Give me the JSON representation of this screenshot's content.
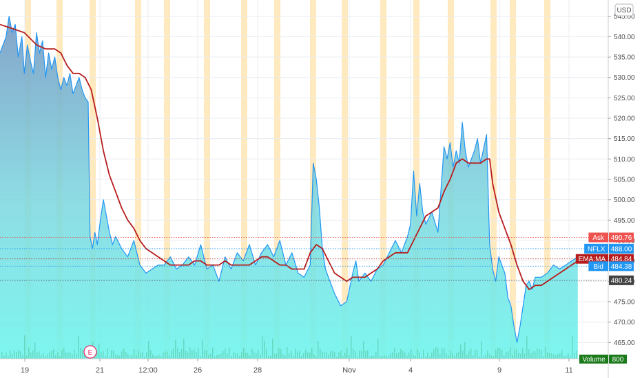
{
  "chart_data": {
    "type": "area",
    "symbol": "NFLX",
    "currency": "USD",
    "ylim": [
      461.0,
      549.0
    ],
    "x_tick_labels": [
      "19",
      "21",
      "12:00",
      "26",
      "28",
      "Nov",
      "4",
      "9",
      "11"
    ],
    "y_ticks": [
      465.0,
      470.0,
      475.0,
      480.0,
      485.0,
      490.0,
      495.0,
      500.0,
      505.0,
      510.0,
      515.0,
      520.0,
      525.0,
      530.0,
      535.0,
      540.0,
      545.0
    ],
    "y_tick_labels": [
      "465.00",
      "470.00",
      "475.00",
      "480.00",
      "485.00",
      "490.00",
      "495.00",
      "500.00",
      "505.00",
      "510.00",
      "515.00",
      "520.00",
      "525.00",
      "530.00",
      "535.00",
      "540.00",
      "545.00"
    ],
    "series": [
      {
        "name": "NFLX",
        "values": [
          [
            0.0,
            536
          ],
          [
            0.01,
            540
          ],
          [
            0.015,
            545
          ],
          [
            0.02,
            541
          ],
          [
            0.025,
            543
          ],
          [
            0.03,
            535
          ],
          [
            0.036,
            540
          ],
          [
            0.04,
            531
          ],
          [
            0.045,
            538
          ],
          [
            0.05,
            534
          ],
          [
            0.055,
            531
          ],
          [
            0.06,
            541
          ],
          [
            0.065,
            536
          ],
          [
            0.07,
            539
          ],
          [
            0.075,
            530
          ],
          [
            0.08,
            536
          ],
          [
            0.085,
            532
          ],
          [
            0.09,
            535
          ],
          [
            0.095,
            530
          ],
          [
            0.1,
            527
          ],
          [
            0.105,
            530
          ],
          [
            0.11,
            528
          ],
          [
            0.115,
            531
          ],
          [
            0.12,
            526
          ],
          [
            0.125,
            528
          ],
          [
            0.13,
            530
          ],
          [
            0.135,
            527
          ],
          [
            0.14,
            525
          ],
          [
            0.145,
            524
          ],
          [
            0.148,
            491
          ],
          [
            0.152,
            488
          ],
          [
            0.156,
            492
          ],
          [
            0.16,
            489
          ],
          [
            0.165,
            495
          ],
          [
            0.17,
            500
          ],
          [
            0.175,
            496
          ],
          [
            0.18,
            492
          ],
          [
            0.185,
            489
          ],
          [
            0.19,
            491
          ],
          [
            0.2,
            488
          ],
          [
            0.21,
            486
          ],
          [
            0.22,
            490
          ],
          [
            0.23,
            484
          ],
          [
            0.24,
            482
          ],
          [
            0.25,
            483
          ],
          [
            0.26,
            484
          ],
          [
            0.27,
            484
          ],
          [
            0.28,
            486
          ],
          [
            0.29,
            483
          ],
          [
            0.3,
            484
          ],
          [
            0.31,
            486
          ],
          [
            0.32,
            484
          ],
          [
            0.33,
            489
          ],
          [
            0.34,
            483
          ],
          [
            0.35,
            484
          ],
          [
            0.36,
            480
          ],
          [
            0.37,
            486
          ],
          [
            0.38,
            483
          ],
          [
            0.39,
            487
          ],
          [
            0.4,
            485
          ],
          [
            0.41,
            489
          ],
          [
            0.42,
            484
          ],
          [
            0.43,
            487
          ],
          [
            0.44,
            489
          ],
          [
            0.45,
            486
          ],
          [
            0.46,
            490
          ],
          [
            0.47,
            484
          ],
          [
            0.48,
            487
          ],
          [
            0.49,
            482
          ],
          [
            0.5,
            481
          ],
          [
            0.51,
            484
          ],
          [
            0.515,
            509
          ],
          [
            0.52,
            505
          ],
          [
            0.525,
            498
          ],
          [
            0.53,
            488
          ],
          [
            0.535,
            483
          ],
          [
            0.54,
            481
          ],
          [
            0.55,
            477
          ],
          [
            0.56,
            474
          ],
          [
            0.57,
            475
          ],
          [
            0.58,
            482
          ],
          [
            0.585,
            485
          ],
          [
            0.59,
            480
          ],
          [
            0.6,
            482
          ],
          [
            0.61,
            480
          ],
          [
            0.62,
            483
          ],
          [
            0.63,
            484
          ],
          [
            0.64,
            487
          ],
          [
            0.65,
            490
          ],
          [
            0.66,
            487
          ],
          [
            0.67,
            491
          ],
          [
            0.675,
            494
          ],
          [
            0.68,
            507
          ],
          [
            0.685,
            496
          ],
          [
            0.69,
            504
          ],
          [
            0.695,
            497
          ],
          [
            0.7,
            494
          ],
          [
            0.71,
            497
          ],
          [
            0.72,
            492
          ],
          [
            0.73,
            513
          ],
          [
            0.735,
            510
          ],
          [
            0.74,
            514
          ],
          [
            0.745,
            508
          ],
          [
            0.75,
            512
          ],
          [
            0.755,
            509
          ],
          [
            0.76,
            519
          ],
          [
            0.765,
            512
          ],
          [
            0.77,
            508
          ],
          [
            0.78,
            512
          ],
          [
            0.785,
            515
          ],
          [
            0.79,
            509
          ],
          [
            0.8,
            516
          ],
          [
            0.805,
            489
          ],
          [
            0.81,
            483
          ],
          [
            0.815,
            480
          ],
          [
            0.82,
            486
          ],
          [
            0.83,
            482
          ],
          [
            0.835,
            476
          ],
          [
            0.84,
            474
          ],
          [
            0.845,
            469
          ],
          [
            0.85,
            465
          ],
          [
            0.855,
            469
          ],
          [
            0.86,
            474
          ],
          [
            0.865,
            479
          ],
          [
            0.87,
            480
          ],
          [
            0.875,
            478
          ],
          [
            0.88,
            481
          ],
          [
            0.89,
            481
          ],
          [
            0.9,
            482
          ],
          [
            0.91,
            484
          ],
          [
            0.92,
            483
          ],
          [
            0.93,
            484
          ],
          [
            0.94,
            485
          ],
          [
            0.95,
            486
          ]
        ]
      },
      {
        "name": "EMA:MA",
        "values": [
          [
            0.0,
            543
          ],
          [
            0.02,
            542
          ],
          [
            0.04,
            541
          ],
          [
            0.06,
            538
          ],
          [
            0.075,
            537
          ],
          [
            0.09,
            537
          ],
          [
            0.1,
            536
          ],
          [
            0.11,
            533
          ],
          [
            0.12,
            531
          ],
          [
            0.13,
            531
          ],
          [
            0.14,
            530
          ],
          [
            0.15,
            527
          ],
          [
            0.16,
            520
          ],
          [
            0.17,
            512
          ],
          [
            0.18,
            506
          ],
          [
            0.19,
            502
          ],
          [
            0.2,
            498
          ],
          [
            0.21,
            495
          ],
          [
            0.22,
            493
          ],
          [
            0.23,
            490
          ],
          [
            0.24,
            488
          ],
          [
            0.25,
            487
          ],
          [
            0.26,
            486
          ],
          [
            0.27,
            485
          ],
          [
            0.28,
            484
          ],
          [
            0.29,
            484
          ],
          [
            0.3,
            484
          ],
          [
            0.31,
            484
          ],
          [
            0.32,
            485
          ],
          [
            0.33,
            485
          ],
          [
            0.34,
            484
          ],
          [
            0.35,
            484
          ],
          [
            0.36,
            484
          ],
          [
            0.37,
            485
          ],
          [
            0.38,
            484
          ],
          [
            0.39,
            484
          ],
          [
            0.4,
            484
          ],
          [
            0.41,
            484
          ],
          [
            0.42,
            485
          ],
          [
            0.43,
            486
          ],
          [
            0.44,
            486
          ],
          [
            0.45,
            485
          ],
          [
            0.46,
            484
          ],
          [
            0.47,
            484
          ],
          [
            0.48,
            483
          ],
          [
            0.49,
            483
          ],
          [
            0.5,
            483
          ],
          [
            0.51,
            487
          ],
          [
            0.52,
            489
          ],
          [
            0.53,
            488
          ],
          [
            0.54,
            485
          ],
          [
            0.55,
            482
          ],
          [
            0.56,
            481
          ],
          [
            0.57,
            480
          ],
          [
            0.58,
            481
          ],
          [
            0.59,
            481
          ],
          [
            0.6,
            481
          ],
          [
            0.61,
            482
          ],
          [
            0.62,
            483
          ],
          [
            0.63,
            485
          ],
          [
            0.64,
            486
          ],
          [
            0.65,
            487
          ],
          [
            0.66,
            487
          ],
          [
            0.67,
            487
          ],
          [
            0.68,
            490
          ],
          [
            0.69,
            493
          ],
          [
            0.7,
            496
          ],
          [
            0.71,
            497
          ],
          [
            0.72,
            498
          ],
          [
            0.73,
            502
          ],
          [
            0.74,
            505
          ],
          [
            0.75,
            509
          ],
          [
            0.76,
            510
          ],
          [
            0.77,
            509
          ],
          [
            0.78,
            509
          ],
          [
            0.79,
            509
          ],
          [
            0.8,
            510
          ],
          [
            0.805,
            510
          ],
          [
            0.81,
            504
          ],
          [
            0.82,
            497
          ],
          [
            0.83,
            493
          ],
          [
            0.84,
            489
          ],
          [
            0.85,
            484
          ],
          [
            0.86,
            480
          ],
          [
            0.87,
            478
          ],
          [
            0.88,
            479
          ],
          [
            0.89,
            479
          ],
          [
            0.9,
            480
          ],
          [
            0.91,
            481
          ],
          [
            0.92,
            482
          ],
          [
            0.93,
            483
          ],
          [
            0.95,
            485
          ]
        ]
      }
    ],
    "price_tags": [
      {
        "label": "Ask",
        "value": "490.76",
        "level": 490.76,
        "color": "#ef5350"
      },
      {
        "label": "NFLX",
        "value": "488.00",
        "level": 488.0,
        "color": "#2196f3"
      },
      {
        "label": "EMA:MA",
        "value": "484.84",
        "level": 485.5,
        "color": "#b71c1c"
      },
      {
        "label": "Bid",
        "value": "484.38",
        "level": 483.7,
        "color": "#2196f3"
      },
      {
        "label": "",
        "value": "480.24",
        "level": 480.24,
        "color": "#424242"
      }
    ],
    "volume_tag": {
      "label": "Volume",
      "value": "800",
      "color": "#1b7a1b"
    },
    "event_marker": {
      "label": "E",
      "color": "#e91e63"
    },
    "grid": true,
    "legend": "none"
  },
  "colors": {
    "price_line": "#2196f3",
    "ema_line": "#b71c1c",
    "area_top": "#7ea0c4",
    "area_bottom": "#6ff5ee",
    "session_band": "#ffe0a3",
    "grid": "#e8ecf0",
    "axis_text": "#4a4a4a"
  }
}
